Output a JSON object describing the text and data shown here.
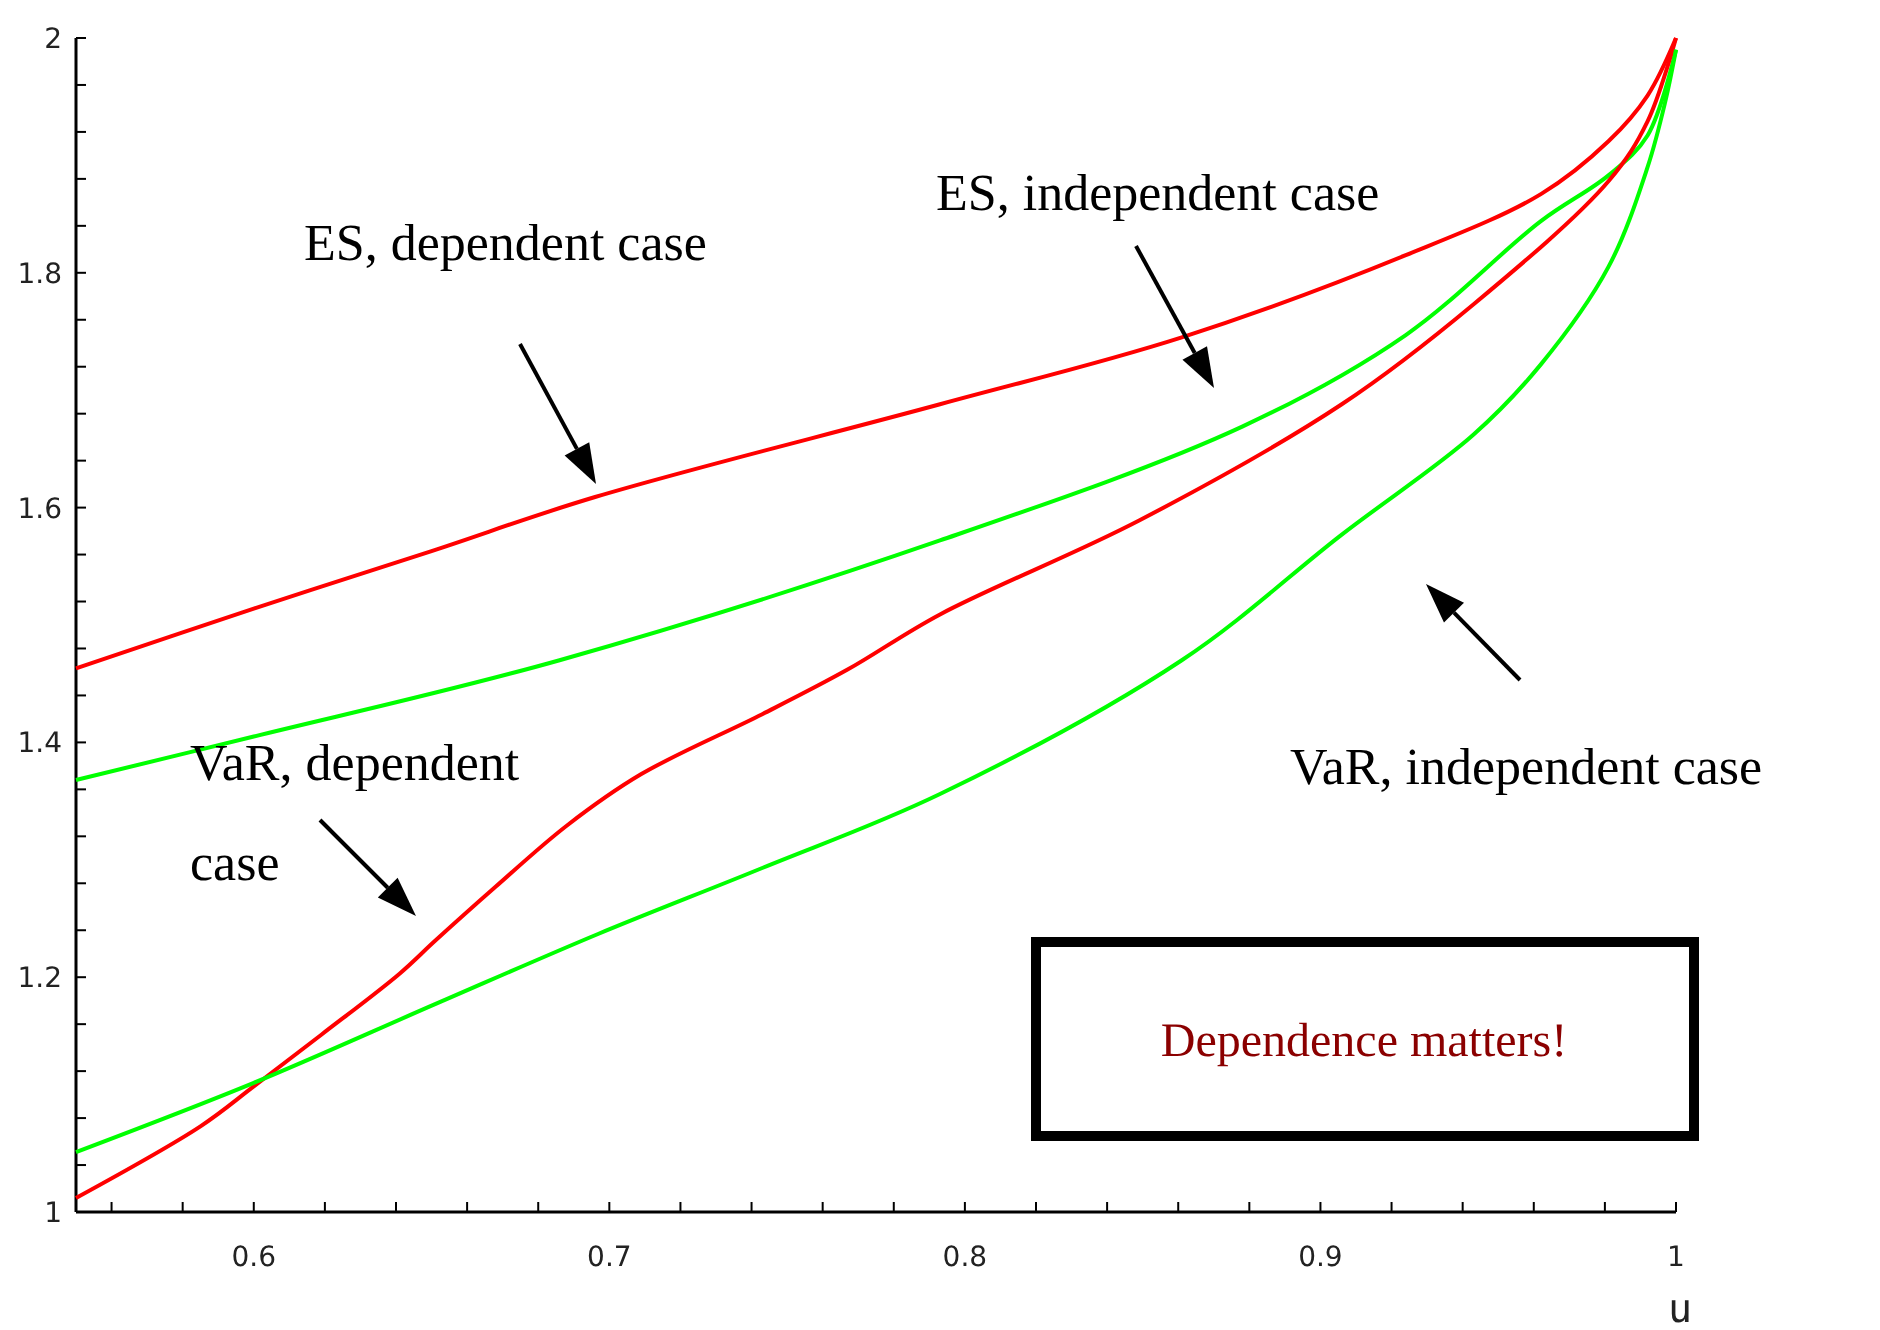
{
  "chart_data": {
    "type": "line",
    "xlabel": "u",
    "xlim": [
      0.55,
      1
    ],
    "ylim": [
      1,
      2
    ],
    "xticks": [
      {
        "value": 0.56,
        "label": null
      },
      {
        "value": 0.58,
        "label": null
      },
      0.6,
      {
        "value": 0.62,
        "label": null
      },
      {
        "value": 0.64,
        "label": null
      },
      {
        "value": 0.66,
        "label": null
      },
      {
        "value": 0.68,
        "label": null
      },
      0.7,
      {
        "value": 0.72,
        "label": null
      },
      {
        "value": 0.74,
        "label": null
      },
      {
        "value": 0.76,
        "label": null
      },
      {
        "value": 0.78,
        "label": null
      },
      0.8,
      {
        "value": 0.82,
        "label": null
      },
      {
        "value": 0.84,
        "label": null
      },
      {
        "value": 0.86,
        "label": null
      },
      {
        "value": 0.88,
        "label": null
      },
      0.9,
      {
        "value": 0.92,
        "label": null
      },
      {
        "value": 0.94,
        "label": null
      },
      {
        "value": 0.96,
        "label": null
      },
      {
        "value": 0.98,
        "label": null
      },
      1
    ],
    "yticks": [
      1,
      {
        "value": 1.04,
        "label": null
      },
      {
        "value": 1.08,
        "label": null
      },
      {
        "value": 1.12,
        "label": null
      },
      {
        "value": 1.16,
        "label": null
      },
      1.2,
      {
        "value": 1.24,
        "label": null
      },
      {
        "value": 1.28,
        "label": null
      },
      {
        "value": 1.32,
        "label": null
      },
      {
        "value": 1.36,
        "label": null
      },
      1.4,
      {
        "value": 1.44,
        "label": null
      },
      {
        "value": 1.48,
        "label": null
      },
      {
        "value": 1.52,
        "label": null
      },
      {
        "value": 1.56,
        "label": null
      },
      1.6,
      {
        "value": 1.64,
        "label": null
      },
      {
        "value": 1.68,
        "label": null
      },
      {
        "value": 1.72,
        "label": null
      },
      {
        "value": 1.76,
        "label": null
      },
      1.8,
      {
        "value": 1.84,
        "label": null
      },
      {
        "value": 1.88,
        "label": null
      },
      {
        "value": 1.92,
        "label": null
      },
      {
        "value": 1.96,
        "label": null
      },
      2
    ],
    "grid": false,
    "marker": "none",
    "line_style": "solid",
    "series": [
      {
        "color": "#ff0000",
        "x": [
          0.55,
          0.6,
          0.65,
          0.696,
          0.793,
          0.861,
          0.924,
          0.962,
          0.981,
          0.992,
          1
        ],
        "values": [
          1.463,
          1.514,
          1.563,
          1.609,
          1.688,
          1.745,
          1.815,
          1.867,
          1.912,
          1.951,
          2.0
        ]
      },
      {
        "color": "#00ff00",
        "x": [
          0.55,
          0.6,
          0.686,
          0.793,
          0.878,
          0.924,
          0.962,
          0.981,
          0.992,
          1
        ],
        "values": [
          1.368,
          1.405,
          1.47,
          1.572,
          1.669,
          1.747,
          1.844,
          1.883,
          1.917,
          1.99
        ]
      },
      {
        "color": "#ff0000",
        "x": [
          0.55,
          0.585,
          0.6,
          0.619,
          0.641,
          0.651,
          0.668,
          0.688,
          0.709,
          0.743,
          0.767,
          0.793,
          0.849,
          0.906,
          0.943,
          0.981,
          0.992,
          1
        ],
        "values": [
          1.012,
          1.073,
          1.107,
          1.151,
          1.203,
          1.231,
          1.277,
          1.329,
          1.373,
          1.424,
          1.462,
          1.509,
          1.589,
          1.688,
          1.773,
          1.878,
          1.929,
          2.0
        ]
      },
      {
        "color": "#00ff00",
        "x": [
          0.55,
          0.6,
          0.651,
          0.697,
          0.743,
          0.793,
          0.861,
          0.906,
          0.943,
          0.962,
          0.981,
          0.992,
          0.997,
          1
        ],
        "values": [
          1.051,
          1.11,
          1.177,
          1.237,
          1.293,
          1.356,
          1.47,
          1.577,
          1.662,
          1.722,
          1.805,
          1.89,
          1.946,
          1.99
        ]
      }
    ],
    "annotations": [
      "ES, dependent case",
      "ES, independent case",
      "VaR, dependent case",
      "VaR, independent case",
      "Dependence matters!"
    ]
  }
}
